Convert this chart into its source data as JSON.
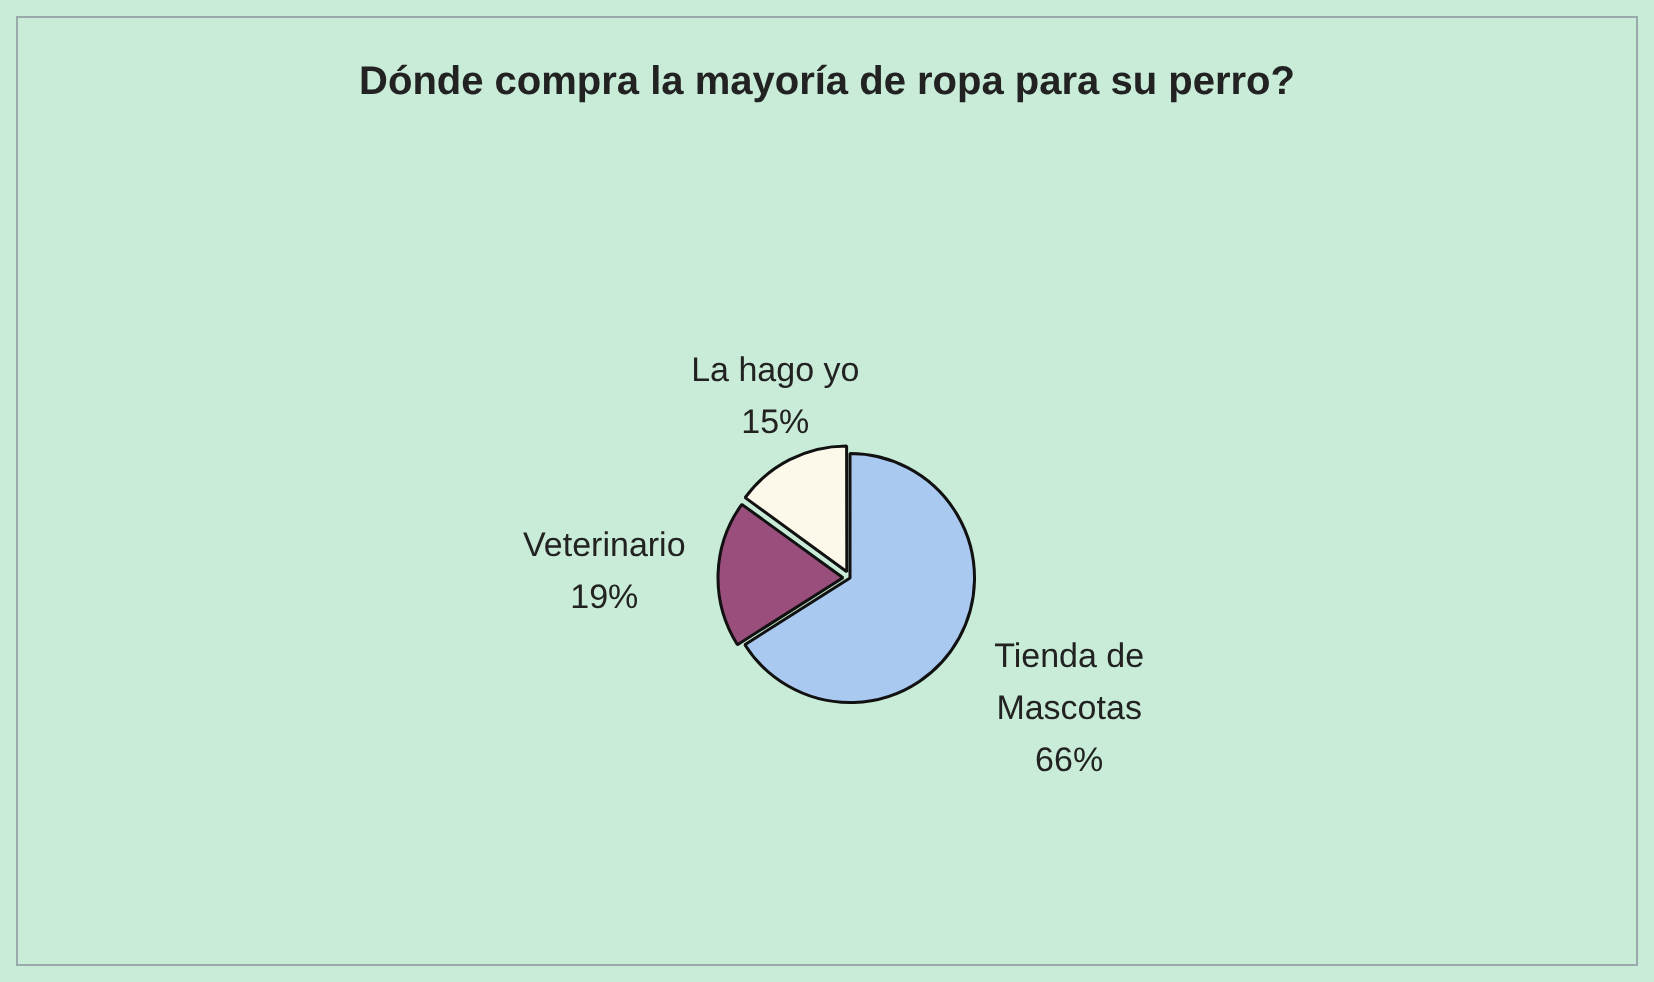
{
  "chart_data": {
    "type": "pie",
    "title": "Dónde compra la mayoría de ropa para su perro?",
    "categories": [
      "Tienda de Mascotas",
      "Veterinario",
      "La hago yo"
    ],
    "values": [
      66,
      19,
      15
    ],
    "value_labels": [
      "66%",
      "19%",
      "15%"
    ],
    "colors": [
      "#a9c9f0",
      "#9a4e7c",
      "#fcf8ea"
    ],
    "legend": false
  }
}
